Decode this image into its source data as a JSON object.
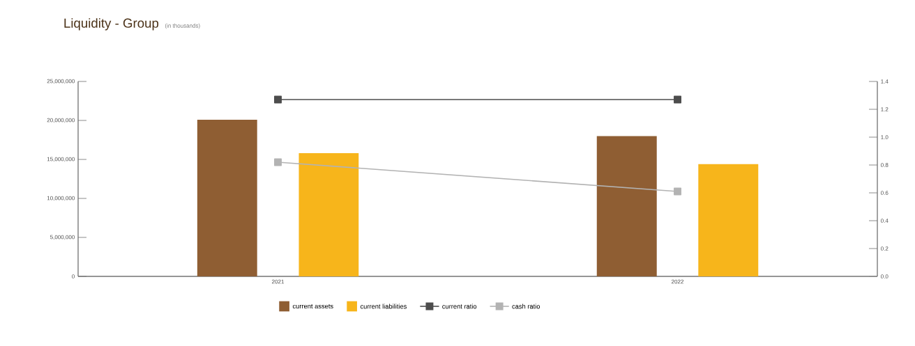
{
  "chart_data": {
    "type": "bar",
    "title": "Liquidity - Group",
    "subtitle": "(in thousands)",
    "categories": [
      "2021",
      "2022"
    ],
    "series": [
      {
        "name": "current assets",
        "color": "#8f5e33",
        "values": [
          20100000,
          18000000
        ]
      },
      {
        "name": "current liabilities",
        "color": "#f7b51b",
        "values": [
          15800000,
          14400000
        ]
      },
      {
        "name": "current ratio",
        "type": "line",
        "axis": "y2",
        "marker": "square",
        "color": "#4d4d4d",
        "values": [
          1.27,
          1.27
        ]
      },
      {
        "name": "cash ratio",
        "type": "line",
        "axis": "y2",
        "marker": "square",
        "color": "#b3b3b3",
        "values": [
          0.82,
          0.61
        ]
      }
    ],
    "ylim": [
      0,
      25000000
    ],
    "yticks": [
      {
        "value": 0,
        "label": "0"
      },
      {
        "value": 5000000,
        "label": "5,000,000"
      },
      {
        "value": 10000000,
        "label": "10,000,000"
      },
      {
        "value": 15000000,
        "label": "15,000,000"
      },
      {
        "value": 20000000,
        "label": "20,000,000"
      },
      {
        "value": 25000000,
        "label": "25,000,000"
      }
    ],
    "y2lim": [
      0,
      1.4
    ],
    "y2ticks": [
      {
        "value": 0,
        "label": "0.0"
      },
      {
        "value": 0.2,
        "label": "0.2"
      },
      {
        "value": 0.4,
        "label": "0.4"
      },
      {
        "value": 0.6,
        "label": "0.6"
      },
      {
        "value": 0.8,
        "label": "0.8"
      },
      {
        "value": 1.0,
        "label": "1.0"
      },
      {
        "value": 1.2,
        "label": "1.2"
      },
      {
        "value": 1.4,
        "label": "1.4"
      }
    ],
    "grid": false,
    "legend": "bottom"
  }
}
